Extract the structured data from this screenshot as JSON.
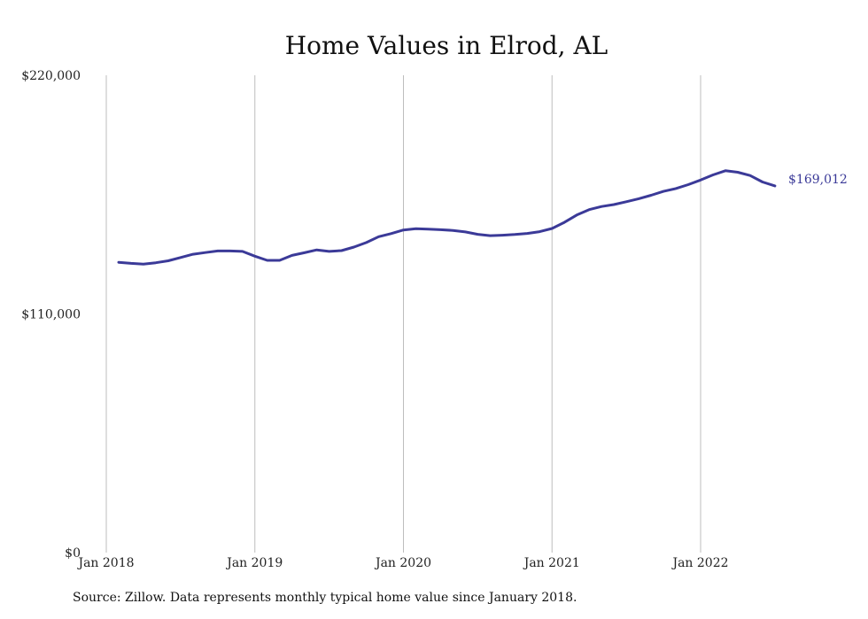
{
  "chart_data": {
    "type": "line",
    "title": "Home Values in Elrod, AL",
    "xlabel": "",
    "ylabel": "",
    "ylim": [
      0,
      220000
    ],
    "y_ticks": [
      "$0",
      "$110,000",
      "$220,000"
    ],
    "x_ticks": [
      "Jan 2018",
      "Jan 2019",
      "Jan 2020",
      "Jan 2021",
      "Jan 2022"
    ],
    "grid": "vertical",
    "line_color": "#3b3a98",
    "end_label": "$169,012",
    "series": [
      {
        "x": [
          "2018-02",
          "2018-03",
          "2018-04",
          "2018-05",
          "2018-06",
          "2018-07",
          "2018-08",
          "2018-09",
          "2018-10",
          "2018-11",
          "2018-12",
          "2019-01",
          "2019-02",
          "2019-03",
          "2019-04",
          "2019-05",
          "2019-06",
          "2019-07",
          "2019-08",
          "2019-09",
          "2019-10",
          "2019-11",
          "2019-12",
          "2020-01",
          "2020-02",
          "2020-03",
          "2020-04",
          "2020-05",
          "2020-06",
          "2020-07",
          "2020-08",
          "2020-09",
          "2020-10",
          "2020-11",
          "2020-12",
          "2021-01",
          "2021-02",
          "2021-03",
          "2021-04",
          "2021-05",
          "2021-06",
          "2021-07",
          "2021-08",
          "2021-09",
          "2021-10",
          "2021-11",
          "2021-12",
          "2022-01",
          "2022-02",
          "2022-03",
          "2022-04",
          "2022-05",
          "2022-06",
          "2022-07"
        ],
        "values": [
          133800,
          133300,
          133000,
          133600,
          134500,
          136000,
          137500,
          138300,
          139000,
          139000,
          138800,
          136600,
          134700,
          134700,
          137000,
          138200,
          139500,
          138800,
          139200,
          140800,
          142900,
          145600,
          147000,
          148700,
          149300,
          149100,
          148800,
          148500,
          147800,
          146700,
          146100,
          146300,
          146600,
          147100,
          147900,
          149400,
          152200,
          155600,
          158100,
          159500,
          160400,
          161700,
          163100,
          164700,
          166500,
          167800,
          169600,
          171700,
          174100,
          176000,
          175300,
          173800,
          170800,
          169012
        ]
      }
    ]
  },
  "source_text": "Source: Zillow. Data represents monthly typical home value since January 2018."
}
